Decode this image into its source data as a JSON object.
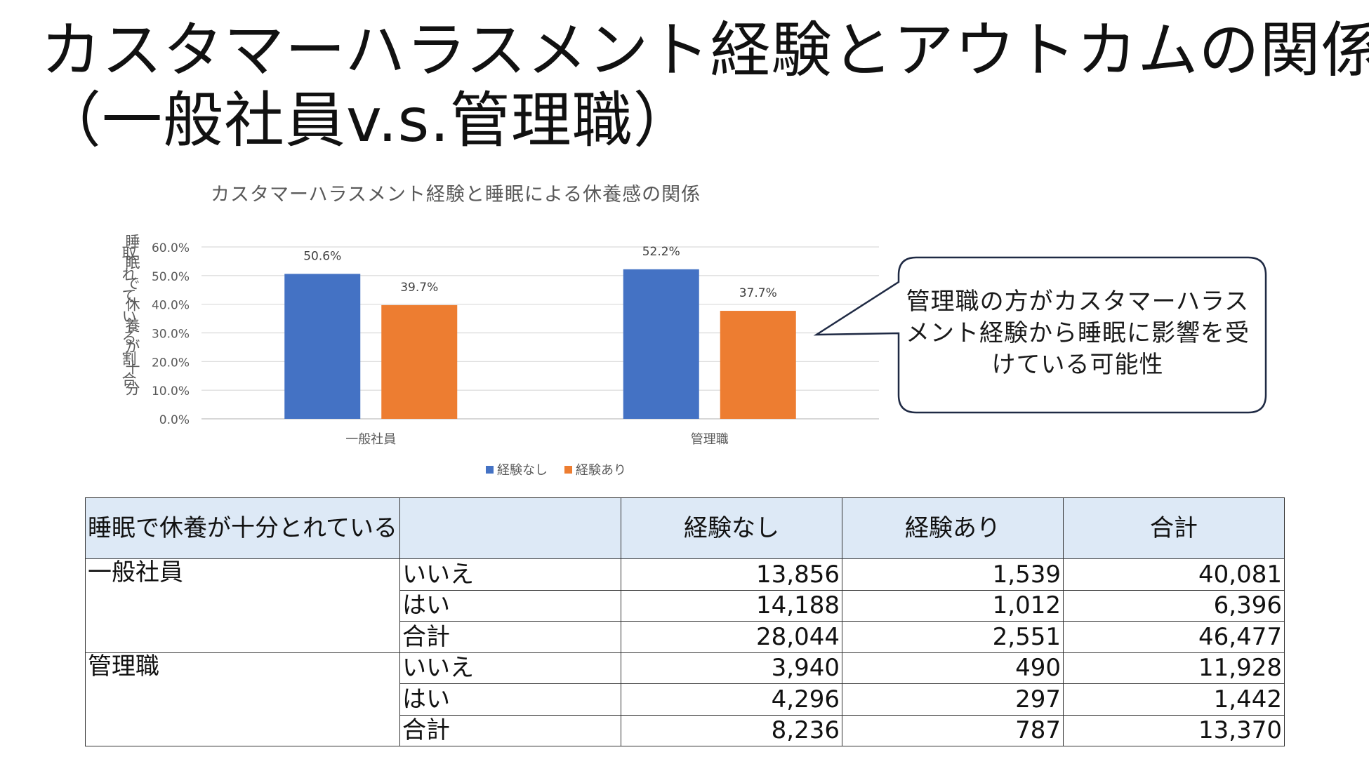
{
  "slide": {
    "title_line1": "カスタマーハラスメント経験とアウトカムの関係",
    "title_line2": "（一般社員v.s.管理職）"
  },
  "chart_data": {
    "type": "bar",
    "title": "カスタマーハラスメント経験と睡眠による休養感の関係",
    "ylabel_col1": "睡眠で休養が十分",
    "ylabel_col2": "取れている割合",
    "categories": [
      "一般社員",
      "管理職"
    ],
    "series": [
      {
        "name": "経験なし",
        "color": "#4472c4",
        "values": [
          50.6,
          52.2
        ],
        "labels": [
          "50.6%",
          "52.2%"
        ]
      },
      {
        "name": "経験あり",
        "color": "#ed7d31",
        "values": [
          39.7,
          37.7
        ],
        "labels": [
          "39.7%",
          "37.7%"
        ]
      }
    ],
    "ylim": [
      0,
      60
    ],
    "yticks": [
      "0.0%",
      "10.0%",
      "20.0%",
      "30.0%",
      "40.0%",
      "50.0%",
      "60.0%"
    ],
    "grid": true,
    "legend": "bottom"
  },
  "callout": {
    "text": "管理職の方がカスタマーハラスメント経験から睡眠に影響を受けている可能性"
  },
  "table": {
    "header": {
      "col0": "睡眠で休養が十分とれている",
      "col1": "",
      "col2": "経験なし",
      "col3": "経験あり",
      "col4": "合計"
    },
    "groups": [
      {
        "name": "一般社員",
        "rows": [
          {
            "label": "いいえ",
            "v1": "13,856",
            "v2": "1,539",
            "v3": "40,081"
          },
          {
            "label": "はい",
            "v1": "14,188",
            "v2": "1,012",
            "v3": "6,396"
          },
          {
            "label": "合計",
            "v1": "28,044",
            "v2": "2,551",
            "v3": "46,477"
          }
        ]
      },
      {
        "name": "管理職",
        "rows": [
          {
            "label": "いいえ",
            "v1": "3,940",
            "v2": "490",
            "v3": "11,928"
          },
          {
            "label": "はい",
            "v1": "4,296",
            "v2": "297",
            "v3": "1,442"
          },
          {
            "label": "合計",
            "v1": "8,236",
            "v2": "787",
            "v3": "13,370"
          }
        ]
      }
    ]
  }
}
